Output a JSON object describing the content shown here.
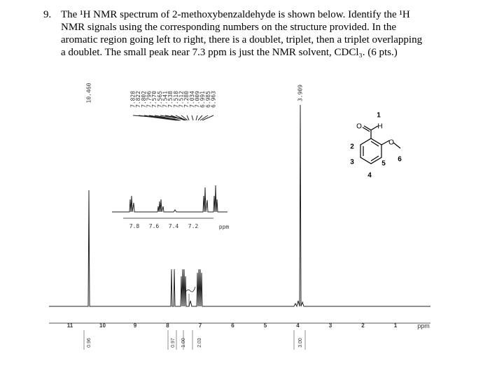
{
  "question": {
    "number": "9.",
    "lines": [
      "The ¹H NMR spectrum of 2-methoxybenzaldehyde is shown below.  Identify the ¹H",
      "NMR signals using the corresponding numbers on the structure provided.  In the",
      "aromatic region going left to right, there is a doublet, triplet, then a triplet overlapping",
      "a doublet. The small peak near 7.3 ppm is just the NMR solvent, CDCl₃. (6 pts.)"
    ]
  },
  "spectrum": {
    "peak_labels": {
      "aldehyde": "10.460",
      "aromatic": [
        "7.828",
        "7.822",
        "7.802",
        "7.796",
        "7.570",
        "7.565",
        "7.541",
        "7.538",
        "7.518",
        "7.512",
        "7.280",
        "7.034",
        "7.009",
        "6.991",
        "6.985",
        "6.963"
      ],
      "methoxy": "3.909"
    },
    "axis": {
      "ticks": [
        "11",
        "10",
        "9",
        "8",
        "7",
        "6",
        "5",
        "4",
        "3",
        "2",
        "1"
      ],
      "unit": "ppm"
    },
    "inset_axis": {
      "ticks": [
        "7.8",
        "7.6",
        "7.4",
        "7.2"
      ],
      "unit": "ppm"
    },
    "integrals": [
      "0.96",
      "0.97",
      "1.00",
      "2.03",
      "3.00"
    ]
  },
  "structure": {
    "atoms": [
      "O",
      "H",
      "O"
    ],
    "numbers": [
      "1",
      "2",
      "3",
      "4",
      "5",
      "6"
    ]
  }
}
